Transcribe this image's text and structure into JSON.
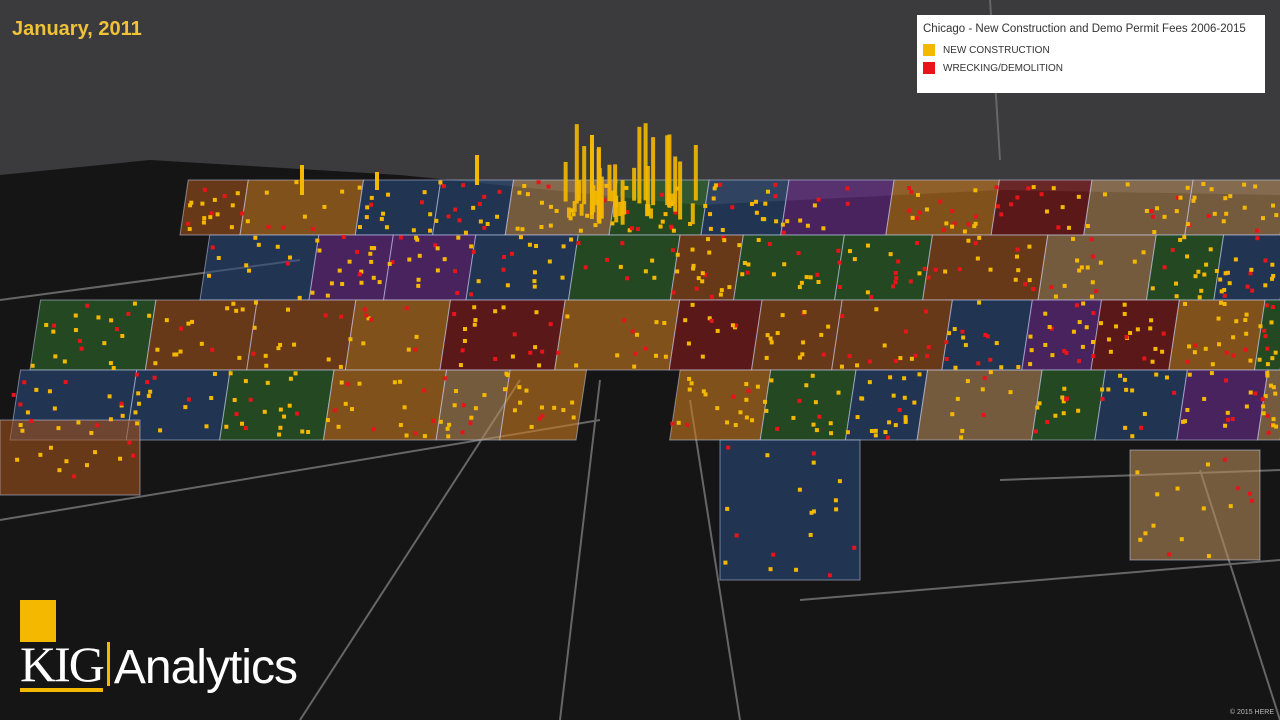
{
  "header": {
    "date": "January, 2011"
  },
  "legend": {
    "title": "Chicago - New Construction and Demo Permit Fees 2006-2015",
    "items": [
      {
        "label": "NEW CONSTRUCTION",
        "color": "#f5b800"
      },
      {
        "label": "WRECKING/DEMOLITION",
        "color": "#e8141a"
      }
    ]
  },
  "logo": {
    "brand": "KIG",
    "name": "Analytics"
  },
  "attribution": "© 2015 HERE"
}
